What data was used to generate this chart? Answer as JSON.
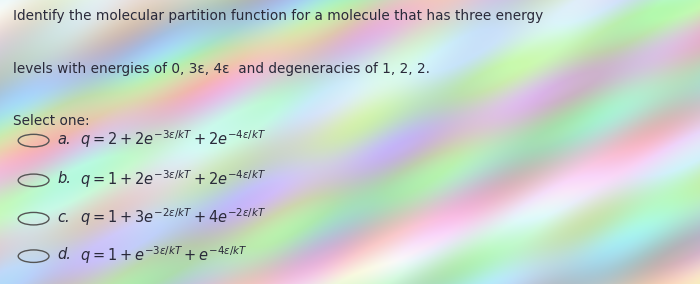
{
  "question_line1": "Identify the molecular partition function for a molecule that has three energy",
  "question_line2": "levels with energies of 0, 3ε, 4ε  and degeneracies of 1, 2, 2.",
  "select_one": "Select one:",
  "options": [
    {
      "letter": "a.",
      "math": "$q = 2 + 2e^{-3\\varepsilon/kT} + 2e^{-4\\varepsilon/kT}$"
    },
    {
      "letter": "b.",
      "math": "$q = 1 + 2e^{-3\\varepsilon/kT} + 2e^{-4\\varepsilon/kT}$"
    },
    {
      "letter": "c.",
      "math": "$q = 1 + 3e^{-2\\varepsilon/kT} + 4e^{-2\\varepsilon/kT}$"
    },
    {
      "letter": "d.",
      "math": "$q = 1 + e^{-3\\varepsilon/kT} + e^{-4\\varepsilon/kT}$"
    }
  ],
  "text_color": "#2a2a3a",
  "circle_color": "#555555",
  "figsize": [
    7.0,
    2.84
  ],
  "dpi": 100
}
